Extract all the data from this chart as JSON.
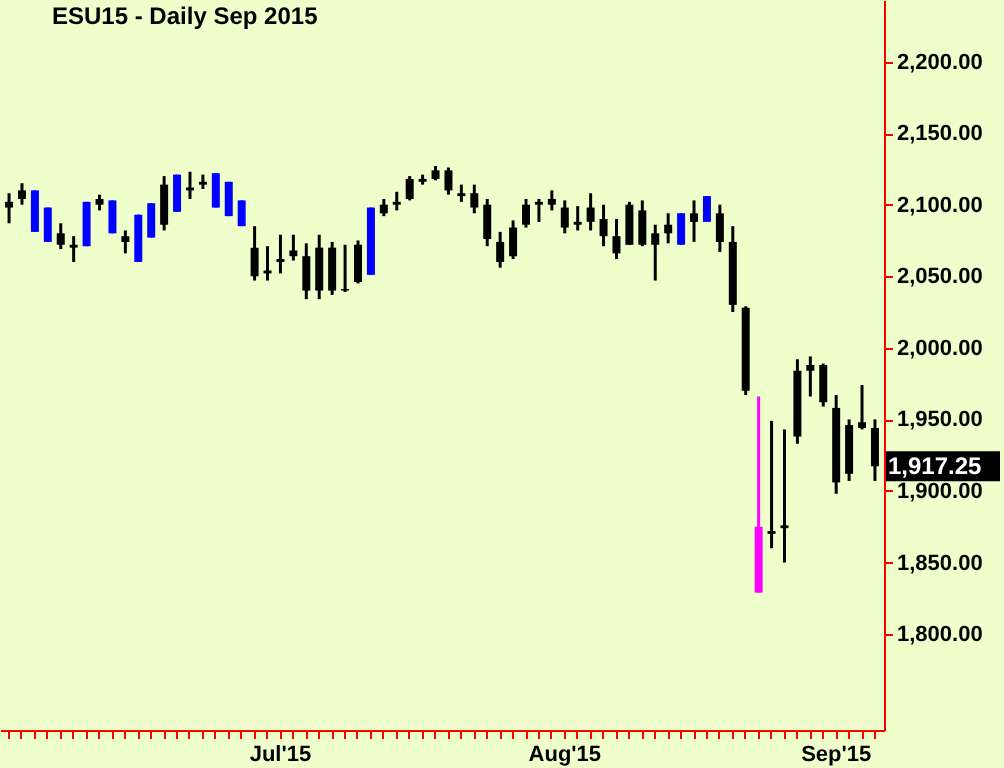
{
  "chart_data": {
    "type": "candlestick",
    "title": "ESU15 - Daily Sep 2015",
    "categories": [
      null,
      null,
      null,
      null,
      null,
      null,
      null,
      null,
      null,
      null,
      null,
      null,
      null,
      null,
      null,
      null,
      null,
      null,
      null,
      null,
      null,
      "Jul'15",
      null,
      null,
      null,
      null,
      null,
      null,
      null,
      null,
      null,
      null,
      null,
      null,
      null,
      null,
      null,
      null,
      null,
      null,
      null,
      null,
      null,
      "Aug'15",
      null,
      null,
      null,
      null,
      null,
      null,
      null,
      null,
      null,
      null,
      null,
      null,
      null,
      null,
      null,
      null,
      null,
      null,
      null,
      null,
      "Sep'15",
      null,
      null,
      null
    ],
    "ohlc": [
      [
        2102,
        2108,
        2087,
        2098
      ],
      [
        2110,
        2115,
        2100,
        2104
      ],
      [
        2081,
        2110,
        2081,
        2110
      ],
      [
        2074,
        2098,
        2074,
        2098
      ],
      [
        2080,
        2087,
        2069,
        2072
      ],
      [
        2072,
        2078,
        2060,
        2070
      ],
      [
        2071,
        2102,
        2071,
        2102
      ],
      [
        2104,
        2107,
        2096,
        2100
      ],
      [
        2080,
        2103,
        2080,
        2103
      ],
      [
        2078,
        2082,
        2066,
        2074
      ],
      [
        2060,
        2093,
        2060,
        2093
      ],
      [
        2077,
        2101,
        2077,
        2101
      ],
      [
        2114,
        2120,
        2082,
        2086
      ],
      [
        2095,
        2121,
        2095,
        2121
      ],
      [
        2112,
        2123,
        2104,
        2110
      ],
      [
        2116,
        2121,
        2111,
        2114
      ],
      [
        2098,
        2122,
        2098,
        2122
      ],
      [
        2092,
        2116,
        2092,
        2116
      ],
      [
        2085,
        2103,
        2085,
        2103
      ],
      [
        2070,
        2085,
        2047,
        2050
      ],
      [
        2054,
        2071,
        2047,
        2052
      ],
      [
        2062,
        2079,
        2052,
        2060
      ],
      [
        2068,
        2079,
        2061,
        2064
      ],
      [
        2064,
        2073,
        2034,
        2040
      ],
      [
        2070,
        2079,
        2034,
        2040
      ],
      [
        2070,
        2074,
        2037,
        2040
      ],
      [
        2041,
        2072,
        2039,
        2040
      ],
      [
        2072,
        2075,
        2045,
        2046
      ],
      [
        2051,
        2098,
        2051,
        2098
      ],
      [
        2100,
        2104,
        2092,
        2094
      ],
      [
        2102,
        2109,
        2096,
        2100
      ],
      [
        2118,
        2120,
        2103,
        2104
      ],
      [
        2118,
        2121,
        2114,
        2116
      ],
      [
        2124,
        2127,
        2117,
        2118
      ],
      [
        2124,
        2126,
        2107,
        2110
      ],
      [
        2108,
        2114,
        2102,
        2106
      ],
      [
        2108,
        2114,
        2094,
        2098
      ],
      [
        2100,
        2104,
        2071,
        2076
      ],
      [
        2074,
        2081,
        2056,
        2060
      ],
      [
        2084,
        2089,
        2062,
        2064
      ],
      [
        2100,
        2104,
        2084,
        2086
      ],
      [
        2102,
        2104,
        2088,
        2100
      ],
      [
        2104,
        2110,
        2096,
        2100
      ],
      [
        2098,
        2103,
        2080,
        2084
      ],
      [
        2088,
        2099,
        2082,
        2086
      ],
      [
        2098,
        2108,
        2082,
        2088
      ],
      [
        2090,
        2100,
        2071,
        2078
      ],
      [
        2078,
        2090,
        2062,
        2066
      ],
      [
        2100,
        2102,
        2072,
        2072
      ],
      [
        2096,
        2103,
        2071,
        2072
      ],
      [
        2080,
        2086,
        2047,
        2072
      ],
      [
        2086,
        2094,
        2073,
        2080
      ],
      [
        2072,
        2094,
        2072,
        2094
      ],
      [
        2094,
        2103,
        2074,
        2088
      ],
      [
        2088,
        2106,
        2088,
        2106
      ],
      [
        2094,
        2100,
        2067,
        2074
      ],
      [
        2074,
        2085,
        2025,
        2030
      ],
      [
        2028,
        2029,
        1967,
        1970
      ],
      [
        1875,
        1966,
        1829,
        1829
      ],
      [
        1872,
        1949,
        1860,
        1870
      ],
      [
        1876,
        1943,
        1850,
        1874
      ],
      [
        1984,
        1992,
        1933,
        1938
      ],
      [
        1988,
        1994,
        1966,
        1984
      ],
      [
        1988,
        1989,
        1959,
        1962
      ],
      [
        1958,
        1967,
        1898,
        1906
      ],
      [
        1946,
        1950,
        1907,
        1912
      ],
      [
        1948,
        1974,
        1943,
        1944
      ],
      [
        1944,
        1950,
        1907,
        1917.25
      ]
    ],
    "colors": [
      "#000000",
      "#000000",
      "#0000ff",
      "#0000ff",
      "#000000",
      "#000000",
      "#0000ff",
      "#000000",
      "#0000ff",
      "#000000",
      "#0000ff",
      "#0000ff",
      "#000000",
      "#0000ff",
      "#000000",
      "#000000",
      "#0000ff",
      "#0000ff",
      "#0000ff",
      "#000000",
      "#000000",
      "#000000",
      "#000000",
      "#000000",
      "#000000",
      "#000000",
      "#000000",
      "#000000",
      "#0000ff",
      "#000000",
      "#000000",
      "#000000",
      "#000000",
      "#000000",
      "#000000",
      "#000000",
      "#000000",
      "#000000",
      "#000000",
      "#000000",
      "#000000",
      "#000000",
      "#000000",
      "#000000",
      "#000000",
      "#000000",
      "#000000",
      "#000000",
      "#000000",
      "#000000",
      "#000000",
      "#000000",
      "#0000ff",
      "#000000",
      "#0000ff",
      "#000000",
      "#000000",
      "#000000",
      "#ff00ff",
      "#000000",
      "#000000",
      "#000000",
      "#000000",
      "#000000",
      "#000000",
      "#000000",
      "#000000",
      "#000000"
    ],
    "ylim": [
      1733,
      2243
    ],
    "yticks": [
      {
        "value": 1800,
        "label": "1,800.00"
      },
      {
        "value": 1850,
        "label": "1,850.00"
      },
      {
        "value": 1900,
        "label": "1,900.00"
      },
      {
        "value": 1950,
        "label": "1,950.00"
      },
      {
        "value": 2000,
        "label": "2,000.00"
      },
      {
        "value": 2050,
        "label": "2,050.00"
      },
      {
        "value": 2100,
        "label": "2,100.00"
      },
      {
        "value": 2150,
        "label": "2,150.00"
      },
      {
        "value": 2200,
        "label": "2,200.00"
      }
    ],
    "annotations": [
      "1,917.25"
    ],
    "grid": false
  }
}
